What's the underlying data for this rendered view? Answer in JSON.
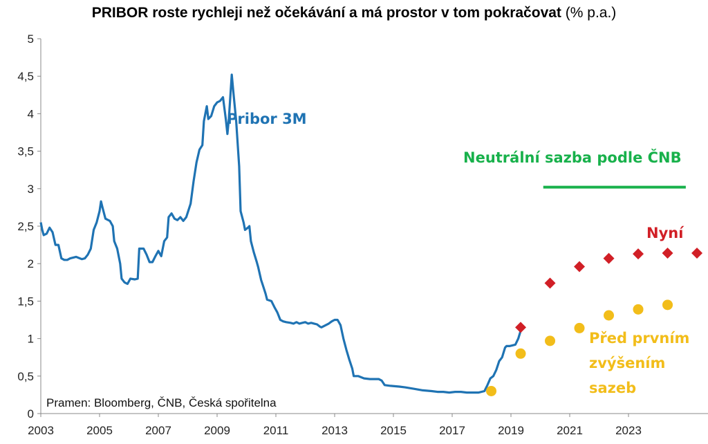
{
  "title": {
    "main": "PRIBOR roste rychleji než očekávání a má prostor v tom pokračovat",
    "unit": "(% p.a.)"
  },
  "colors": {
    "pribor": "#1f73b3",
    "neutral": "#18b14b",
    "current": "#d11f26",
    "before": "#f2bd1a",
    "axis": "#888888"
  },
  "chart_data": {
    "type": "line",
    "title": "PRIBOR roste rychleji než očekávání a má prostor v tom pokračovat (% p.a.)",
    "xlabel": "",
    "ylabel": "",
    "xlim": [
      2003,
      2025.4
    ],
    "ylim": [
      0,
      5
    ],
    "x_ticks": [
      "2003",
      "2005",
      "2007",
      "2009",
      "2011",
      "2013",
      "2015",
      "2017",
      "2019",
      "2021",
      "2023"
    ],
    "y_ticks": [
      "0",
      "0,5",
      "1",
      "1,5",
      "2",
      "2,5",
      "3",
      "3,5",
      "4",
      "4,5",
      "5"
    ],
    "grid": false,
    "series": [
      {
        "name": "Pribor 3M",
        "kind": "line",
        "points": [
          [
            2003.0,
            2.55
          ],
          [
            2003.05,
            2.45
          ],
          [
            2003.1,
            2.38
          ],
          [
            2003.2,
            2.4
          ],
          [
            2003.3,
            2.48
          ],
          [
            2003.4,
            2.42
          ],
          [
            2003.5,
            2.25
          ],
          [
            2003.6,
            2.25
          ],
          [
            2003.7,
            2.07
          ],
          [
            2003.8,
            2.05
          ],
          [
            2003.9,
            2.05
          ],
          [
            2004.0,
            2.07
          ],
          [
            2004.2,
            2.09
          ],
          [
            2004.4,
            2.06
          ],
          [
            2004.5,
            2.07
          ],
          [
            2004.6,
            2.12
          ],
          [
            2004.7,
            2.2
          ],
          [
            2004.8,
            2.45
          ],
          [
            2004.9,
            2.55
          ],
          [
            2005.0,
            2.7
          ],
          [
            2005.05,
            2.83
          ],
          [
            2005.1,
            2.75
          ],
          [
            2005.2,
            2.6
          ],
          [
            2005.35,
            2.57
          ],
          [
            2005.45,
            2.5
          ],
          [
            2005.5,
            2.3
          ],
          [
            2005.6,
            2.2
          ],
          [
            2005.7,
            2.0
          ],
          [
            2005.75,
            1.8
          ],
          [
            2005.85,
            1.75
          ],
          [
            2005.95,
            1.73
          ],
          [
            2006.05,
            1.8
          ],
          [
            2006.2,
            1.79
          ],
          [
            2006.3,
            1.8
          ],
          [
            2006.35,
            2.2
          ],
          [
            2006.5,
            2.2
          ],
          [
            2006.6,
            2.12
          ],
          [
            2006.7,
            2.02
          ],
          [
            2006.8,
            2.02
          ],
          [
            2006.9,
            2.1
          ],
          [
            2007.0,
            2.17
          ],
          [
            2007.1,
            2.1
          ],
          [
            2007.2,
            2.3
          ],
          [
            2007.3,
            2.35
          ],
          [
            2007.35,
            2.62
          ],
          [
            2007.45,
            2.67
          ],
          [
            2007.55,
            2.6
          ],
          [
            2007.65,
            2.58
          ],
          [
            2007.75,
            2.62
          ],
          [
            2007.85,
            2.57
          ],
          [
            2007.95,
            2.62
          ],
          [
            2008.1,
            2.8
          ],
          [
            2008.2,
            3.1
          ],
          [
            2008.3,
            3.35
          ],
          [
            2008.4,
            3.52
          ],
          [
            2008.5,
            3.58
          ],
          [
            2008.55,
            3.9
          ],
          [
            2008.65,
            4.1
          ],
          [
            2008.7,
            3.93
          ],
          [
            2008.8,
            3.97
          ],
          [
            2008.9,
            4.1
          ],
          [
            2009.0,
            4.15
          ],
          [
            2009.1,
            4.17
          ],
          [
            2009.2,
            4.22
          ],
          [
            2009.3,
            3.92
          ],
          [
            2009.35,
            3.73
          ],
          [
            2009.4,
            3.93
          ],
          [
            2009.5,
            4.52
          ],
          [
            2009.55,
            4.3
          ],
          [
            2009.65,
            3.9
          ],
          [
            2009.75,
            3.3
          ],
          [
            2009.8,
            2.7
          ],
          [
            2009.9,
            2.55
          ],
          [
            2009.95,
            2.45
          ],
          [
            2010.05,
            2.48
          ],
          [
            2010.1,
            2.5
          ],
          [
            2010.15,
            2.3
          ],
          [
            2010.25,
            2.15
          ],
          [
            2010.35,
            2.02
          ],
          [
            2010.4,
            1.95
          ],
          [
            2010.5,
            1.78
          ],
          [
            2010.55,
            1.72
          ],
          [
            2010.65,
            1.6
          ],
          [
            2010.7,
            1.52
          ],
          [
            2010.85,
            1.5
          ],
          [
            2010.95,
            1.42
          ],
          [
            2011.05,
            1.35
          ],
          [
            2011.15,
            1.25
          ],
          [
            2011.25,
            1.23
          ],
          [
            2011.35,
            1.22
          ],
          [
            2011.5,
            1.21
          ],
          [
            2011.6,
            1.2
          ],
          [
            2011.7,
            1.22
          ],
          [
            2011.8,
            1.2
          ],
          [
            2011.9,
            1.21
          ],
          [
            2012.0,
            1.22
          ],
          [
            2012.1,
            1.2
          ],
          [
            2012.2,
            1.21
          ],
          [
            2012.3,
            1.2
          ],
          [
            2012.4,
            1.19
          ],
          [
            2012.5,
            1.16
          ],
          [
            2012.55,
            1.15
          ],
          [
            2012.7,
            1.18
          ],
          [
            2012.8,
            1.2
          ],
          [
            2012.9,
            1.23
          ],
          [
            2013.0,
            1.25
          ],
          [
            2013.1,
            1.25
          ],
          [
            2013.2,
            1.18
          ],
          [
            2013.3,
            1.0
          ],
          [
            2013.4,
            0.85
          ],
          [
            2013.5,
            0.72
          ],
          [
            2013.6,
            0.6
          ],
          [
            2013.65,
            0.5
          ],
          [
            2013.8,
            0.5
          ],
          [
            2014.0,
            0.47
          ],
          [
            2014.2,
            0.46
          ],
          [
            2014.5,
            0.46
          ],
          [
            2014.6,
            0.44
          ],
          [
            2014.7,
            0.38
          ],
          [
            2014.9,
            0.37
          ],
          [
            2015.2,
            0.36
          ],
          [
            2015.4,
            0.35
          ],
          [
            2015.7,
            0.33
          ],
          [
            2016.0,
            0.31
          ],
          [
            2016.3,
            0.3
          ],
          [
            2016.5,
            0.29
          ],
          [
            2016.7,
            0.29
          ],
          [
            2016.9,
            0.28
          ],
          [
            2017.1,
            0.29
          ],
          [
            2017.3,
            0.29
          ],
          [
            2017.5,
            0.28
          ],
          [
            2017.7,
            0.28
          ],
          [
            2017.9,
            0.28
          ],
          [
            2018.1,
            0.3
          ],
          [
            2018.2,
            0.38
          ],
          [
            2018.3,
            0.47
          ],
          [
            2018.4,
            0.5
          ],
          [
            2018.5,
            0.58
          ],
          [
            2018.6,
            0.7
          ],
          [
            2018.7,
            0.75
          ],
          [
            2018.8,
            0.88
          ],
          [
            2018.85,
            0.9
          ],
          [
            2018.95,
            0.9
          ],
          [
            2019.05,
            0.91
          ],
          [
            2019.15,
            0.92
          ],
          [
            2019.25,
            1.0
          ],
          [
            2019.35,
            1.13
          ]
        ]
      },
      {
        "name": "Neutrální sazba podle ČNB",
        "kind": "line",
        "points": [
          [
            2020.1,
            3.02
          ],
          [
            2024.95,
            3.02
          ]
        ]
      },
      {
        "name": "Nyní",
        "kind": "scatter",
        "marker": "diamond",
        "points": [
          [
            2019.33,
            1.15
          ],
          [
            2020.33,
            1.74
          ],
          [
            2021.33,
            1.96
          ],
          [
            2022.33,
            2.07
          ],
          [
            2023.33,
            2.13
          ],
          [
            2024.33,
            2.14
          ],
          [
            2025.33,
            2.14
          ]
        ]
      },
      {
        "name": "Před prvním zvýšením sazeb",
        "kind": "scatter",
        "marker": "circle",
        "points": [
          [
            2018.33,
            0.3
          ],
          [
            2019.33,
            0.8
          ],
          [
            2020.33,
            0.97
          ],
          [
            2021.33,
            1.14
          ],
          [
            2022.33,
            1.31
          ],
          [
            2023.33,
            1.39
          ],
          [
            2024.33,
            1.45
          ]
        ]
      }
    ],
    "annotations": {
      "pribor": "Pribor 3M",
      "neutral": "Neutrální sazba podle ČNB",
      "current": "Nyní",
      "before_lines": [
        "Před prvním",
        "zvýšením",
        "sazeb"
      ],
      "source": "Pramen: Bloomberg, ČNB, Česká spořitelna"
    }
  }
}
